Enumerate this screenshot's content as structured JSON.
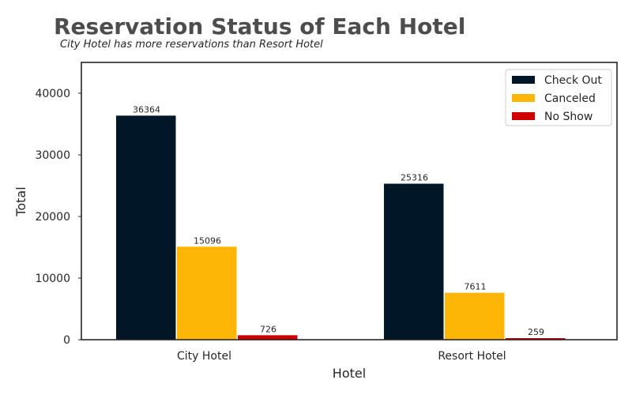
{
  "chart_data": {
    "type": "bar",
    "title": "Reservation Status of Each Hotel",
    "subtitle": "City Hotel has more reservations than Resort Hotel",
    "xlabel": "Hotel",
    "ylabel": "Total",
    "categories": [
      "City Hotel",
      "Resort Hotel"
    ],
    "series": [
      {
        "name": "Check Out",
        "color": "#011627",
        "values": [
          36364,
          25316
        ]
      },
      {
        "name": "Canceled",
        "color": "#FDB606",
        "values": [
          15096,
          7611
        ]
      },
      {
        "name": "No Show",
        "color": "#D00000",
        "values": [
          726,
          259
        ]
      }
    ],
    "ylim": [
      0,
      45000
    ],
    "yticks": [
      0,
      10000,
      20000,
      30000,
      40000
    ],
    "grid": false,
    "legend_position": "top-right"
  }
}
